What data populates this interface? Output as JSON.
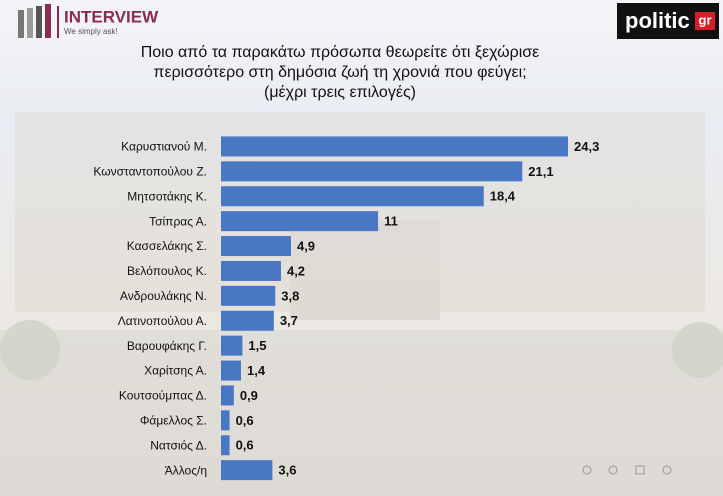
{
  "chart_data": {
    "type": "bar",
    "orientation": "horizontal",
    "title": "Ποιο από τα παρακάτω πρόσωπα θεωρείτε ότι ξεχώρισε περισσότερο στη δημόσια ζωή τη χρονιά που φεύγει; (μέχρι τρεις επιλογές)",
    "categories": [
      "Καρυστιανού Μ.",
      "Κωνσταντοπούλου Ζ.",
      "Μητσοτάκης Κ.",
      "Τσίπρας Α.",
      "Κασσελάκης Σ.",
      "Βελόπουλος Κ.",
      "Ανδρουλάκης Ν.",
      "Λατινοπούλου Α.",
      "Βαρουφάκης Γ.",
      "Χαρίτσης Α.",
      "Κουτσούμπας Δ.",
      "Φάμελλος Σ.",
      "Νατσιός Δ.",
      "Άλλος/η"
    ],
    "values": [
      24.3,
      21.1,
      18.4,
      11,
      4.9,
      4.2,
      3.8,
      3.7,
      1.5,
      1.4,
      0.9,
      0.6,
      0.6,
      3.6
    ],
    "value_labels": [
      "24,3",
      "21,1",
      "18,4",
      "11",
      "4,9",
      "4,2",
      "3,8",
      "3,7",
      "1,5",
      "1,4",
      "0,9",
      "0,6",
      "0,6",
      "3,6"
    ],
    "color": "#4a77c4"
  },
  "logo": {
    "name": "INTERVIEW",
    "tagline": "We simply ask!"
  },
  "publisher": {
    "name": "politic",
    "suffix": "gr"
  }
}
